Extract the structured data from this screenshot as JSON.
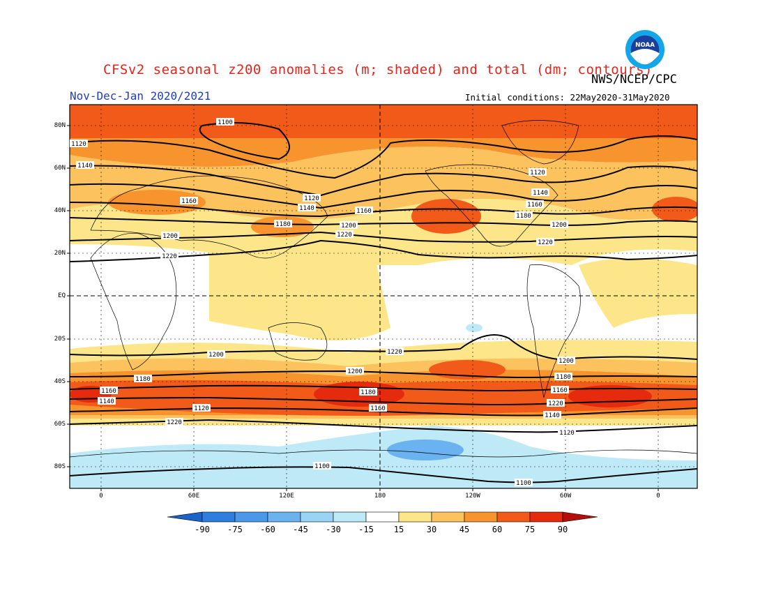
{
  "header": {
    "title": "CFSv2 seasonal z200 anomalies (m; shaded) and total (dm; contours)",
    "agency": "NWS/NCEP/CPC",
    "period": "Nov-Dec-Jan 2020/2021",
    "initial_conditions": "Initial conditions: 22May2020-31May2020"
  },
  "logo": {
    "icon": "noaa-logo",
    "text": "NOAA"
  },
  "axes": {
    "lat_labels": [
      "80N",
      "60N",
      "40N",
      "20N",
      "EQ",
      "20S",
      "40S",
      "60S",
      "80S"
    ],
    "lon_labels": [
      "0",
      "60E",
      "120E",
      "180",
      "120W",
      "60W",
      "0"
    ]
  },
  "contour_labels": [
    "1100",
    "1120",
    "1140",
    "1160",
    "1120",
    "1140",
    "1160",
    "1180",
    "1200",
    "1220",
    "1200",
    "1220",
    "1120",
    "1140",
    "1160",
    "1180",
    "1200",
    "1220",
    "1220",
    "1200",
    "1180",
    "1160",
    "1140",
    "1120",
    "1220",
    "1200",
    "1180",
    "1160",
    "1220",
    "1200",
    "1180",
    "1160",
    "1140",
    "1120",
    "1100",
    "1100"
  ],
  "colorbar": {
    "labels": [
      "-90",
      "-75",
      "-60",
      "-45",
      "-30",
      "-15",
      "15",
      "30",
      "45",
      "60",
      "75",
      "90"
    ],
    "colors": [
      "#1a64c8",
      "#2e7ee0",
      "#4a98ea",
      "#6ab2f0",
      "#9ad4f4",
      "#bdeaf6",
      "#ffffff",
      "#fde68a",
      "#fbc25e",
      "#f8942e",
      "#f25a1a",
      "#e52a0e",
      "#b40e0a"
    ]
  }
}
